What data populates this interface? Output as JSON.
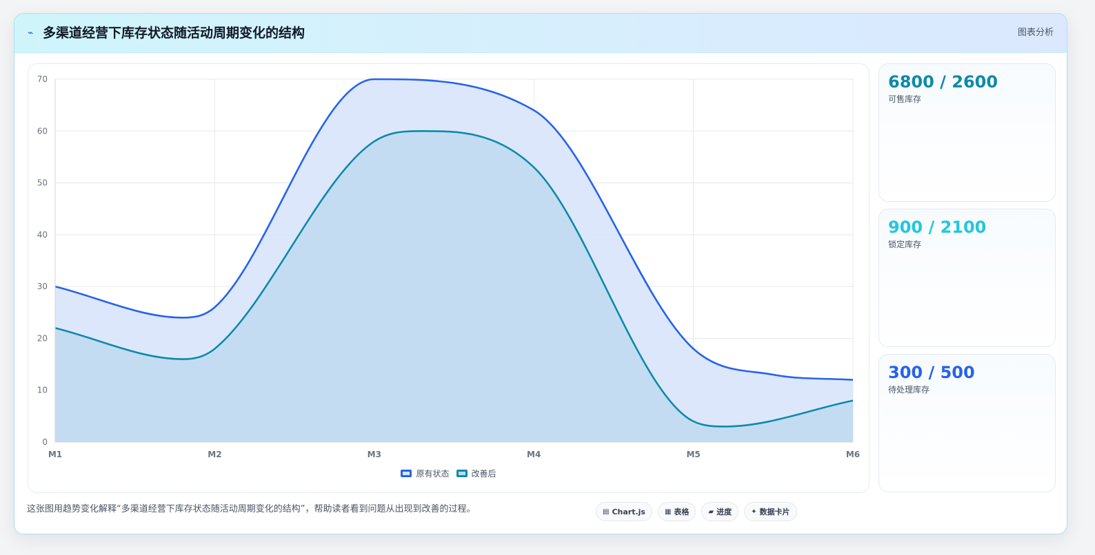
{
  "header": {
    "icon": "lightning-icon",
    "title": "多渠道经营下库存状态随活动周期变化的结构",
    "tag": "图表分析"
  },
  "chart_data": {
    "type": "area",
    "categories": [
      "M1",
      "M2",
      "M3",
      "M4",
      "M5",
      "M6"
    ],
    "x": [
      0,
      1,
      2,
      3,
      4,
      5
    ],
    "ylim": [
      0,
      70
    ],
    "yticks": [
      0,
      10,
      20,
      30,
      40,
      50,
      60,
      70
    ],
    "grid": true,
    "smooth": true,
    "legend_position": "bottom",
    "series": [
      {
        "name": "原有状态",
        "x": [
          0,
          0.8,
          1,
          2,
          3,
          4,
          4.5,
          5
        ],
        "values": [
          30,
          24,
          26,
          70,
          64,
          18,
          13,
          12
        ],
        "color": "#2563eb",
        "fill": "#dbe6fb"
      },
      {
        "name": "改善后",
        "x": [
          0,
          0.8,
          1,
          2,
          2.3,
          3,
          4,
          4.2,
          5
        ],
        "values": [
          22,
          16,
          18,
          58,
          60,
          53,
          4,
          3,
          8
        ],
        "color": "#0e8aa8",
        "fill": "#bfd9ef"
      }
    ]
  },
  "stats": [
    {
      "value": "6800 / 2600",
      "label": "可售库存",
      "color": "#0e8aa8"
    },
    {
      "value": "900 / 2100",
      "label": "锁定库存",
      "color": "#22c7dd"
    },
    {
      "value": "300 / 500",
      "label": "待处理库存",
      "color": "#2563eb"
    }
  ],
  "caption": "这张图用趋势变化解释“多渠道经营下库存状态随活动周期变化的结构”，帮助读者看到问题从出现到改善的过程。",
  "chips": [
    {
      "icon": "chart-icon",
      "label": "Chart.js"
    },
    {
      "icon": "table-icon",
      "label": "表格"
    },
    {
      "icon": "progress-icon",
      "label": "进度"
    },
    {
      "icon": "sparkle-icon",
      "label": "数据卡片"
    }
  ]
}
